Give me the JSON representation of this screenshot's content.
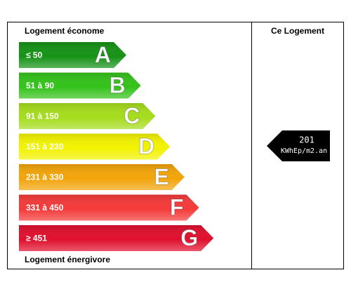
{
  "header": {
    "left_title": "Logement économe",
    "right_title": "Ce Logement"
  },
  "classes": [
    {
      "range": "≤ 50",
      "letter": "A",
      "color": "#169216"
    },
    {
      "range": "51 à 90",
      "letter": "B",
      "color": "#34c21a"
    },
    {
      "range": "91 à 150",
      "letter": "C",
      "color": "#a5dc1c"
    },
    {
      "range": "151 à 230",
      "letter": "D",
      "color": "#f2f200"
    },
    {
      "range": "231 à 330",
      "letter": "E",
      "color": "#f2a40a"
    },
    {
      "range": "331 à 450",
      "letter": "F",
      "color": "#f53a3a"
    },
    {
      "range": "≥  451",
      "letter": "G",
      "color": "#e0102e"
    }
  ],
  "current": {
    "value": 201,
    "unit": "KWhEp/m2.an"
  },
  "footer": {
    "left_title": "Logement énergivore"
  }
}
